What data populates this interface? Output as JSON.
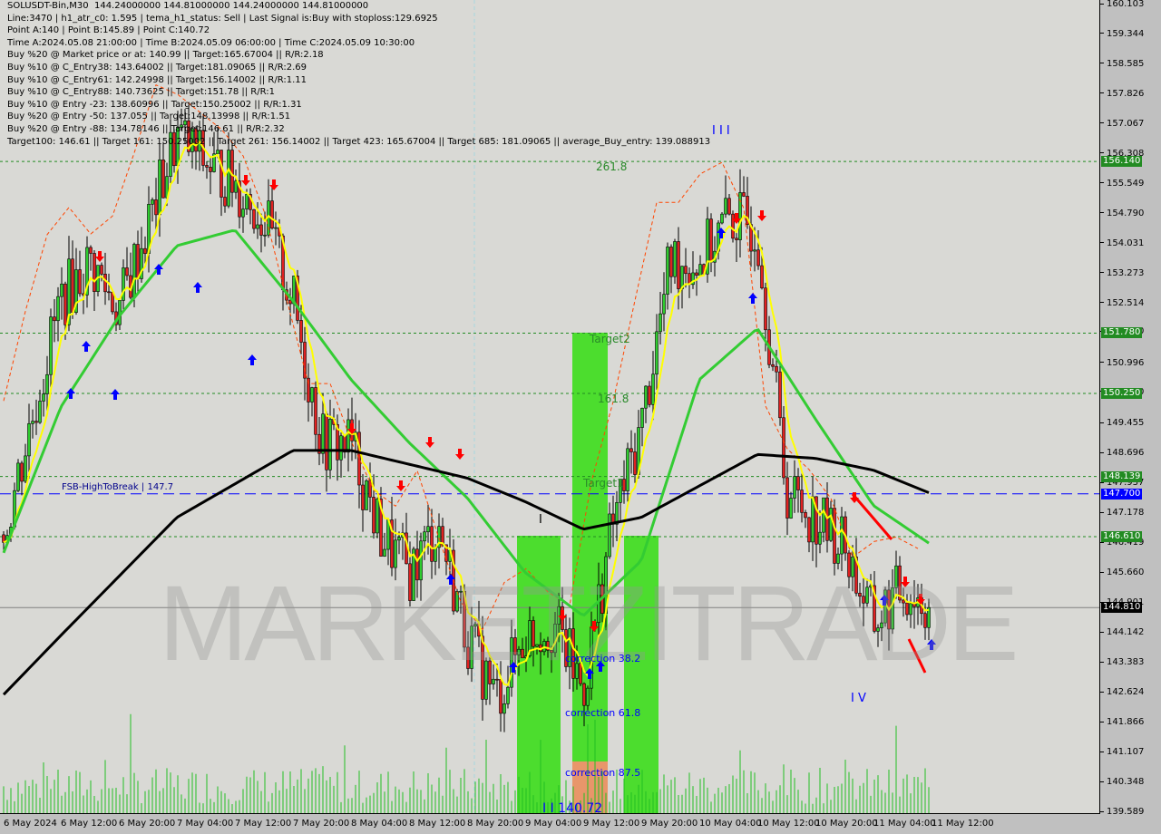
{
  "header": {
    "lines": [
      "SOLUSDT-Bin,M30  144.24000000 144.81000000 144.24000000 144.81000000",
      "Line:3470 | h1_atr_c0: 1.595 | tema_h1_status: Sell | Last Signal is:Buy with stoploss:129.6925",
      "Point A:140 | Point B:145.89 | Point C:140.72",
      "Time A:2024.05.08 21:00:00 | Time B:2024.05.09 06:00:00 | Time C:2024.05.09 10:30:00",
      "Buy %20 @ Market price or at: 140.99 || Target:165.67004 || R/R:2.18",
      "Buy %10 @ C_Entry38: 143.64002 || Target:181.09065 || R/R:2.69",
      "Buy %10 @ C_Entry61: 142.24998 || Target:156.14002 || R/R:1.11",
      "Buy %10 @ C_Entry88: 140.73625 || Target:151.78 || R/R:1",
      "Buy %10 @ Entry -23: 138.60996 || Target:150.25002 || R/R:1.31",
      "Buy %20 @ Entry -50: 137.055 || Target:148.13998 || R/R:1.51",
      "Buy %20 @ Entry -88: 134.78146 || Target:146.61 || R/R:2.32",
      "Target100: 146.61 || Target 161: 150.25002 || Target 261: 156.14002 || Target 423: 165.67004 || Target 685: 181.09065 || average_Buy_entry: 139.088913"
    ]
  },
  "watermark": {
    "bold": "MARKETZI",
    "light": "TRADE"
  },
  "chart_data": {
    "type": "candlestick",
    "symbol": "SOLUSDT-Bin",
    "timeframe": "M30",
    "ylim": [
      139.589,
      160.103
    ],
    "y_ticks": [
      "160.103",
      "159.344",
      "158.585",
      "157.826",
      "157.067",
      "156.308",
      "155.549",
      "154.790",
      "154.031",
      "153.273",
      "152.514",
      "151.780",
      "150.996",
      "150.250",
      "149.455",
      "148.696",
      "147.937",
      "147.178",
      "146.419",
      "145.660",
      "144.901",
      "144.142",
      "143.383",
      "142.624",
      "141.866",
      "141.107",
      "140.348",
      "139.589"
    ],
    "x_ticks": [
      "6 May 2024",
      "6 May 12:00",
      "6 May 20:00",
      "7 May 04:00",
      "7 May 12:00",
      "7 May 20:00",
      "8 May 04:00",
      "8 May 12:00",
      "8 May 20:00",
      "9 May 04:00",
      "9 May 12:00",
      "9 May 20:00",
      "10 May 04:00",
      "10 May 12:00",
      "10 May 20:00",
      "11 May 04:00",
      "11 May 12:00"
    ],
    "close_path": [
      {
        "t": "6 May 00:00",
        "p": 146.66
      },
      {
        "t": "6 May 12:00",
        "p": 152.64
      },
      {
        "t": "6 May 16:00",
        "p": 153.56
      },
      {
        "t": "6 May 20:00",
        "p": 152.4
      },
      {
        "t": "7 May 00:00",
        "p": 154.5
      },
      {
        "t": "7 May 04:00",
        "p": 156.8
      },
      {
        "t": "7 May 08:00",
        "p": 156.1
      },
      {
        "t": "7 May 12:00",
        "p": 155.6
      },
      {
        "t": "7 May 16:00",
        "p": 154.7
      },
      {
        "t": "7 May 20:00",
        "p": 152.6
      },
      {
        "t": "8 May 00:00",
        "p": 149.0
      },
      {
        "t": "8 May 04:00",
        "p": 149.0
      },
      {
        "t": "8 May 08:00",
        "p": 146.7
      },
      {
        "t": "8 May 12:00",
        "p": 145.7
      },
      {
        "t": "8 May 16:00",
        "p": 146.9
      },
      {
        "t": "8 May 20:00",
        "p": 144.1
      },
      {
        "t": "9 May 00:00",
        "p": 142.5
      },
      {
        "t": "9 May 04:00",
        "p": 144.1
      },
      {
        "t": "9 May 08:00",
        "p": 144.4
      },
      {
        "t": "9 May 12:00",
        "p": 142.7
      },
      {
        "t": "9 May 16:00",
        "p": 146.9
      },
      {
        "t": "9 May 20:00",
        "p": 149.4
      },
      {
        "t": "10 May 00:00",
        "p": 153.6
      },
      {
        "t": "10 May 04:00",
        "p": 153.6
      },
      {
        "t": "10 May 08:00",
        "p": 154.7
      },
      {
        "t": "10 May 12:00",
        "p": 154.5
      },
      {
        "t": "10 May 16:00",
        "p": 147.8
      },
      {
        "t": "10 May 20:00",
        "p": 147.1
      },
      {
        "t": "11 May 00:00",
        "p": 146.4
      },
      {
        "t": "11 May 04:00",
        "p": 144.4
      },
      {
        "t": "11 May 08:00",
        "p": 145.3
      },
      {
        "t": "11 May 12:00",
        "p": 144.81
      }
    ],
    "ma_black": [
      {
        "t": "6 May 00:00",
        "p": 142.6
      },
      {
        "t": "6 May 12:00",
        "p": 144.1
      },
      {
        "t": "7 May 04:00",
        "p": 147.1
      },
      {
        "t": "7 May 20:00",
        "p": 148.8
      },
      {
        "t": "8 May 04:00",
        "p": 148.8
      },
      {
        "t": "8 May 20:00",
        "p": 148.1
      },
      {
        "t": "9 May 04:00",
        "p": 147.5
      },
      {
        "t": "9 May 12:00",
        "p": 146.8
      },
      {
        "t": "9 May 20:00",
        "p": 147.1
      },
      {
        "t": "10 May 04:00",
        "p": 147.9
      },
      {
        "t": "10 May 12:00",
        "p": 148.7
      },
      {
        "t": "10 May 20:00",
        "p": 148.6
      },
      {
        "t": "11 May 04:00",
        "p": 148.3
      },
      {
        "t": "11 May 12:00",
        "p": 147.7
      }
    ],
    "ma_green": [
      {
        "t": "6 May 00:00",
        "p": 146.2
      },
      {
        "t": "6 May 12:00",
        "p": 149.9
      },
      {
        "t": "6 May 20:00",
        "p": 152.2
      },
      {
        "t": "7 May 04:00",
        "p": 154.0
      },
      {
        "t": "7 May 12:00",
        "p": 154.4
      },
      {
        "t": "7 May 20:00",
        "p": 152.6
      },
      {
        "t": "8 May 04:00",
        "p": 150.6
      },
      {
        "t": "8 May 12:00",
        "p": 149.0
      },
      {
        "t": "8 May 20:00",
        "p": 147.6
      },
      {
        "t": "9 May 04:00",
        "p": 145.7
      },
      {
        "t": "9 May 12:00",
        "p": 144.6
      },
      {
        "t": "9 May 20:00",
        "p": 146.0
      },
      {
        "t": "10 May 04:00",
        "p": 150.6
      },
      {
        "t": "10 May 12:00",
        "p": 151.9
      },
      {
        "t": "10 May 20:00",
        "p": 149.6
      },
      {
        "t": "11 May 04:00",
        "p": 147.4
      },
      {
        "t": "11 May 12:00",
        "p": 146.4
      }
    ],
    "levels": [
      {
        "price": 156.14,
        "label": "156.140",
        "color": "#228b22",
        "style": "dotted"
      },
      {
        "price": 151.78,
        "label": "151.780",
        "color": "#228b22",
        "style": "dotted"
      },
      {
        "price": 150.25,
        "label": "150.250",
        "color": "#228b22",
        "style": "dotted"
      },
      {
        "price": 148.139,
        "label": "148.139",
        "color": "#228b22",
        "style": "dotted"
      },
      {
        "price": 146.61,
        "label": "146.610",
        "color": "#228b22",
        "style": "dotted"
      },
      {
        "price": 147.7,
        "label": "147.700",
        "color": "#0000ff",
        "style": "dashed"
      },
      {
        "price": 144.81,
        "label": "144.810",
        "color": "#000000",
        "style": "solid"
      }
    ],
    "annotations": {
      "fib_261": "261.8",
      "target2": "Target2",
      "fib_161": "161.8",
      "target1": "Target1",
      "fsb": "FSB-HighToBreak | 147.7",
      "corr38": "correction 38.2",
      "corr61": "correction 61.8",
      "corr87": "correction 87.5",
      "point_c": "I I 140.72",
      "wave3": "I I I",
      "wave4": "I V",
      "wave1": "I"
    },
    "colors": {
      "bull": "#2ecc2e",
      "bear": "#e02020",
      "tema": "#ffff00",
      "ma_green": "#33cc33",
      "ma_black": "#000000",
      "zone": "#33dd11",
      "zone_orange": "#e8966a",
      "stop_line": "#ff4500"
    }
  }
}
